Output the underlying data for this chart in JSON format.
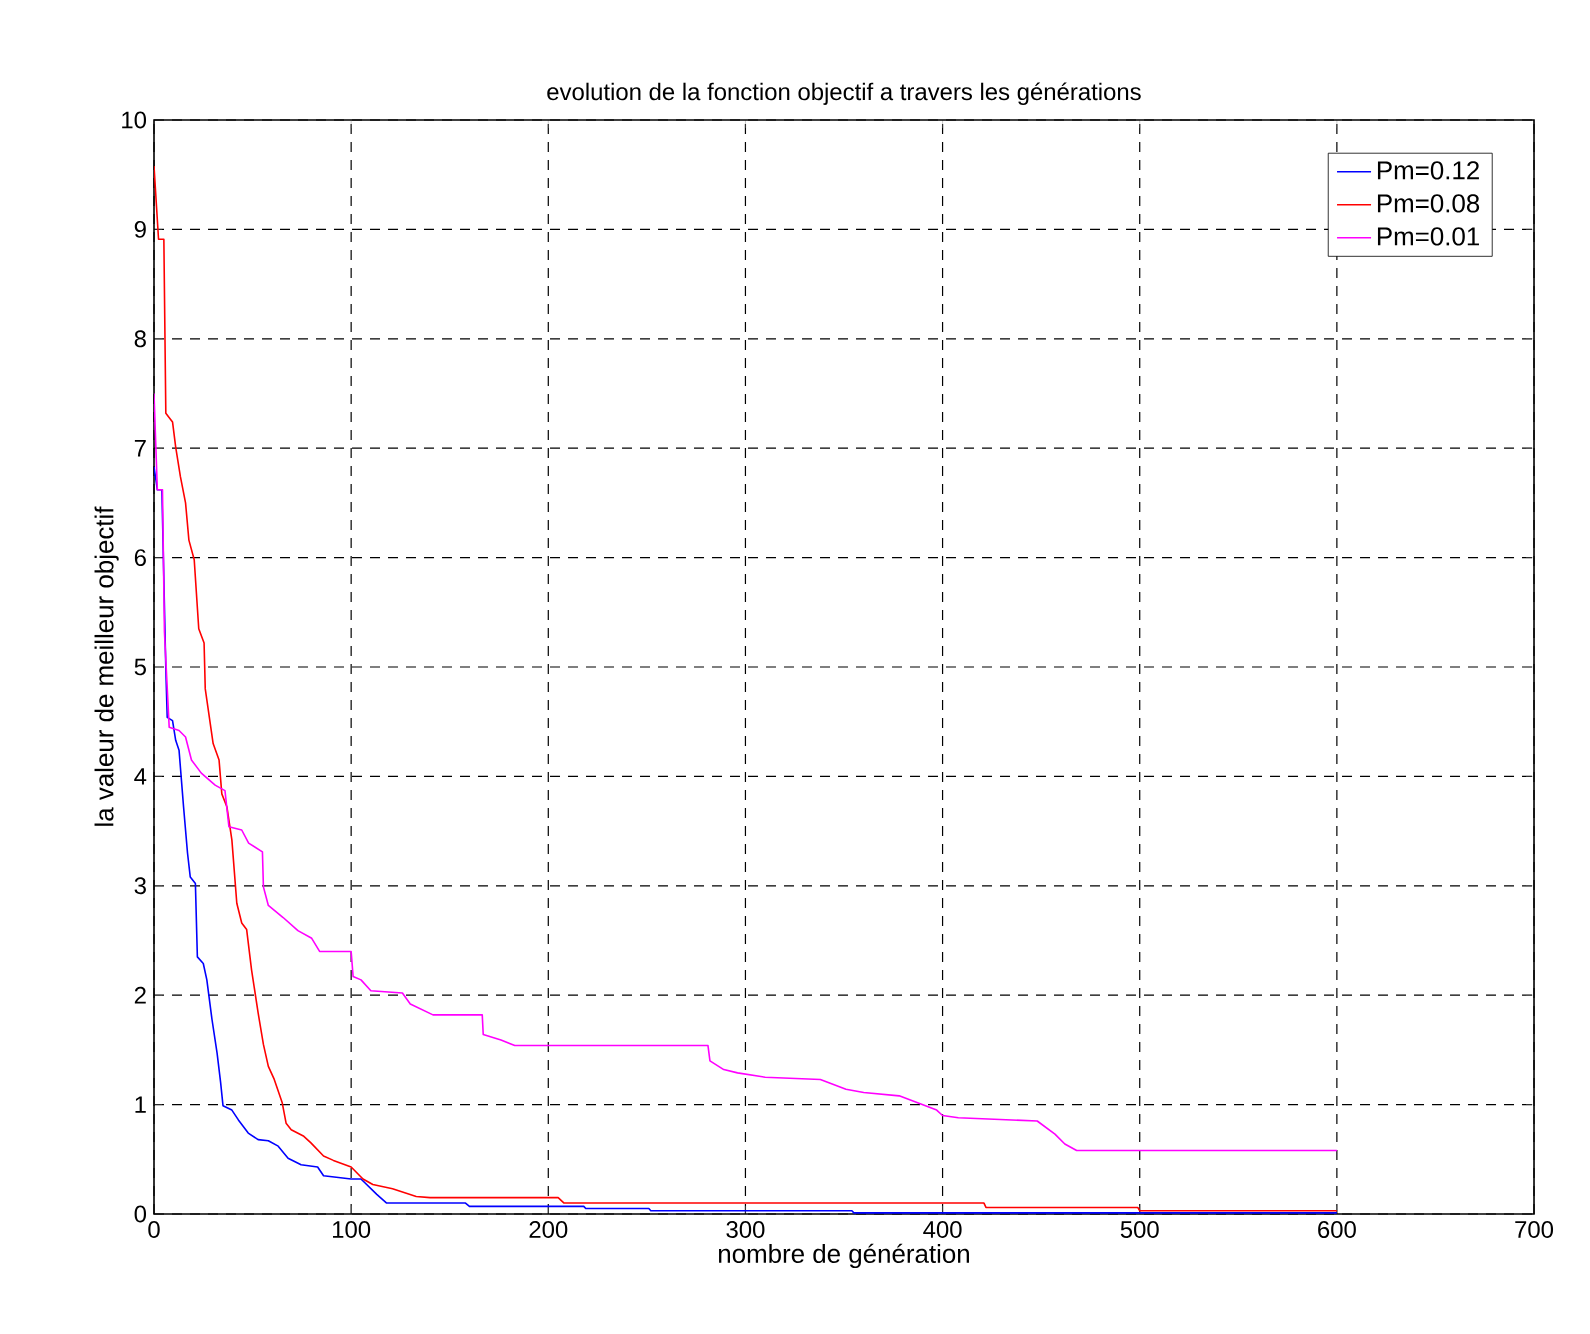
{
  "chart_data": {
    "type": "line",
    "title": "evolution de la fonction objectif a travers les générations",
    "xlabel": "nombre de génération",
    "ylabel": "la valeur de meilleur objectif",
    "xlim": [
      0,
      700
    ],
    "ylim": [
      0,
      10
    ],
    "xticks": [
      0,
      100,
      200,
      300,
      400,
      500,
      600,
      700
    ],
    "yticks": [
      0,
      1,
      2,
      3,
      4,
      5,
      6,
      7,
      8,
      9,
      10
    ],
    "grid": true,
    "legend": "top right",
    "line_style": "solid",
    "marker": "none",
    "series": [
      {
        "name": "Pm=0.12",
        "color": "#0000ff",
        "x": [
          0,
          1.7,
          4,
          6,
          6.7,
          9.4,
          11,
          12.7,
          15,
          17,
          18.4,
          21,
          22,
          25,
          26.8,
          29.4,
          32,
          33.8,
          35,
          39.5,
          42.8,
          47.8,
          52.8,
          58,
          63,
          68,
          74.6,
          83,
          86,
          100,
          105,
          113,
          118,
          158,
          160,
          218,
          219,
          251,
          252,
          354,
          355,
          600
        ],
        "values": [
          6.83,
          6.62,
          6.62,
          4.98,
          4.54,
          4.51,
          4.33,
          4.24,
          3.72,
          3.3,
          3.08,
          3.02,
          2.35,
          2.29,
          2.14,
          1.78,
          1.47,
          1.2,
          0.99,
          0.95,
          0.86,
          0.74,
          0.68,
          0.67,
          0.62,
          0.51,
          0.45,
          0.43,
          0.35,
          0.32,
          0.32,
          0.18,
          0.1,
          0.1,
          0.07,
          0.07,
          0.05,
          0.05,
          0.03,
          0.03,
          0.01,
          0.01
        ]
      },
      {
        "name": "Pm=0.08",
        "color": "#ff0000",
        "x": [
          0,
          2.3,
          5,
          6,
          9.4,
          11,
          13.4,
          16,
          17.7,
          20.4,
          22.7,
          25.4,
          26,
          30,
          33,
          34.4,
          37,
          39.5,
          42,
          44.5,
          47,
          49.5,
          52.8,
          55.5,
          58,
          61,
          65,
          67,
          69.6,
          76,
          79.6,
          86,
          91,
          100,
          106,
          111,
          121,
          133,
          140,
          205,
          208,
          421,
          422,
          499,
          500,
          600
        ],
        "values": [
          9.58,
          8.91,
          8.91,
          7.32,
          7.24,
          7.01,
          6.74,
          6.5,
          6.16,
          5.98,
          5.35,
          5.22,
          4.8,
          4.3,
          4.15,
          3.84,
          3.72,
          3.42,
          2.84,
          2.66,
          2.6,
          2.23,
          1.84,
          1.55,
          1.35,
          1.23,
          1.02,
          0.83,
          0.77,
          0.71,
          0.65,
          0.53,
          0.49,
          0.43,
          0.32,
          0.27,
          0.23,
          0.16,
          0.15,
          0.15,
          0.1,
          0.1,
          0.06,
          0.06,
          0.03,
          0.03
        ]
      },
      {
        "name": "Pm=0.01",
        "color": "#ff00ff",
        "x": [
          0,
          1.7,
          4.3,
          5.3,
          7.7,
          12.7,
          16,
          19,
          24,
          31,
          36,
          38,
          44.5,
          48,
          55,
          55.5,
          58,
          65.5,
          73,
          80,
          84,
          100,
          101,
          105,
          110,
          126,
          130,
          141.5,
          166.5,
          167,
          176,
          183,
          281,
          282,
          289,
          296,
          310,
          338,
          351,
          360,
          378,
          397,
          400,
          408,
          448,
          457,
          462,
          468,
          600
        ],
        "values": [
          7.5,
          6.62,
          6.62,
          5.32,
          4.45,
          4.42,
          4.36,
          4.15,
          4.03,
          3.92,
          3.87,
          3.54,
          3.51,
          3.39,
          3.31,
          2.99,
          2.82,
          2.71,
          2.59,
          2.52,
          2.4,
          2.4,
          2.17,
          2.14,
          2.04,
          2.02,
          1.92,
          1.82,
          1.82,
          1.64,
          1.59,
          1.54,
          1.54,
          1.4,
          1.32,
          1.29,
          1.25,
          1.23,
          1.14,
          1.11,
          1.08,
          0.95,
          0.9,
          0.88,
          0.85,
          0.73,
          0.64,
          0.58,
          0.58
        ]
      }
    ]
  }
}
